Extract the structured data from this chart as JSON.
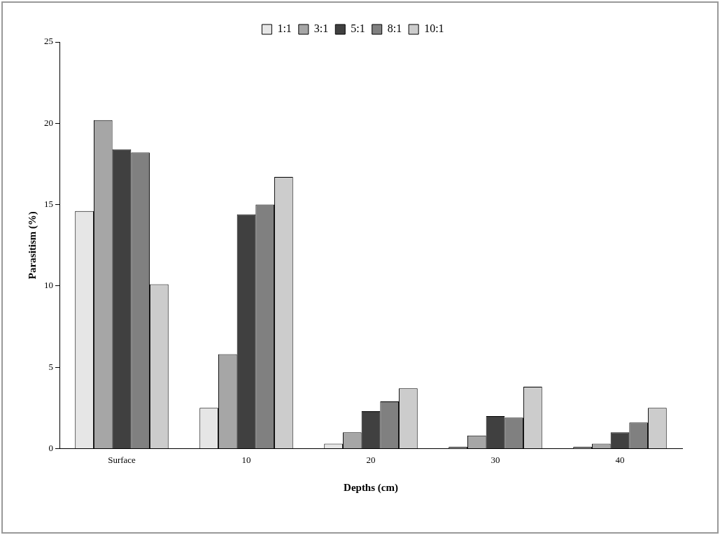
{
  "chart_data": {
    "type": "bar",
    "xlabel": "Depths (cm)",
    "ylabel": "Parasitism (%)",
    "categories": [
      "Surface",
      "10",
      "20",
      "30",
      "40"
    ],
    "series": [
      {
        "name": "1:1",
        "color": "#e6e6e6",
        "values": [
          14.6,
          2.5,
          0.3,
          0.1,
          0.1
        ]
      },
      {
        "name": "3:1",
        "color": "#a6a6a6",
        "values": [
          20.2,
          5.8,
          1.0,
          0.8,
          0.3
        ]
      },
      {
        "name": "5:1",
        "color": "#404040",
        "values": [
          18.4,
          14.4,
          2.3,
          2.0,
          1.0
        ]
      },
      {
        "name": "8:1",
        "color": "#808080",
        "values": [
          18.2,
          15.0,
          2.9,
          1.9,
          1.6
        ]
      },
      {
        "name": "10:1",
        "color": "#cccccc",
        "values": [
          10.1,
          16.7,
          3.7,
          3.8,
          2.5
        ]
      }
    ],
    "ylim": [
      0,
      25
    ],
    "yticks": [
      0,
      5,
      10,
      15,
      20,
      25
    ],
    "grid": false,
    "legend": "top"
  }
}
